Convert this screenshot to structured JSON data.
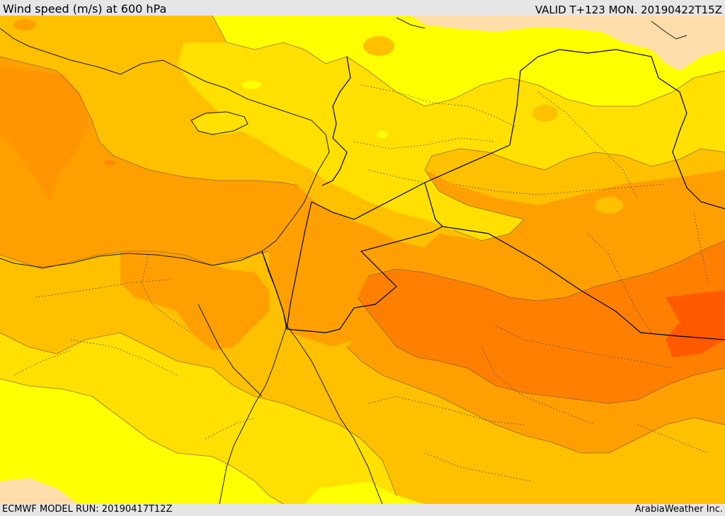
{
  "header": {
    "title": "Wind speed (m/s) at 600 hPa",
    "valid_time": "VALID T+123 MON. 20190422T15Z"
  },
  "footer": {
    "model_run": "ECMWF MODEL RUN: 20190417T12Z",
    "credit": "ArabiaWeather Inc."
  },
  "map": {
    "field": "wind speed",
    "level": "600 hPa",
    "shading_colors": [
      "#ffddaa",
      "#ffff00",
      "#ffe000",
      "#ffc000",
      "#ffa000",
      "#ff8000",
      "#ff5a00"
    ],
    "border_color": "#000000"
  }
}
